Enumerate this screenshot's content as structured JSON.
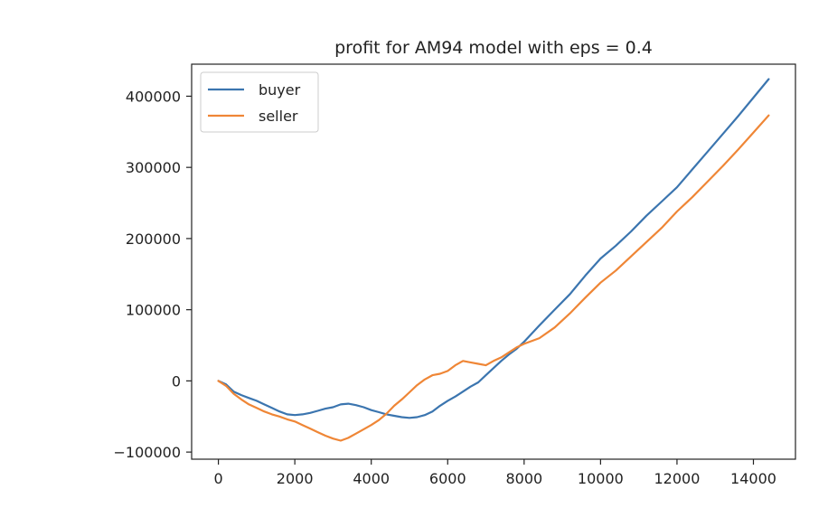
{
  "chart_data": {
    "type": "line",
    "title": "profit for AM94 model with eps = 0.4",
    "xlabel": "",
    "ylabel": "",
    "xlim": [
      -700,
      15100
    ],
    "ylim": [
      -110000,
      445000
    ],
    "xticks": [
      0,
      2000,
      4000,
      6000,
      8000,
      10000,
      12000,
      14000
    ],
    "yticks": [
      -100000,
      0,
      100000,
      200000,
      300000,
      400000
    ],
    "xtick_labels": [
      "0",
      "2000",
      "4000",
      "6000",
      "8000",
      "10000",
      "12000",
      "14000"
    ],
    "ytick_labels": [
      "−100000",
      "0",
      "100000",
      "200000",
      "300000",
      "400000"
    ],
    "grid": false,
    "legend": "top-left",
    "series": [
      {
        "name": "buyer",
        "color": "#3b75af",
        "x": [
          0,
          200,
          400,
          600,
          800,
          1000,
          1200,
          1400,
          1600,
          1800,
          2000,
          2200,
          2400,
          2600,
          2800,
          3000,
          3200,
          3400,
          3600,
          3800,
          4000,
          4200,
          4400,
          4600,
          4800,
          5000,
          5200,
          5400,
          5600,
          5800,
          6000,
          6200,
          6400,
          6600,
          6800,
          7000,
          7200,
          7400,
          7600,
          7800,
          8000,
          8400,
          8800,
          9200,
          9600,
          10000,
          10400,
          10800,
          11200,
          11600,
          12000,
          12400,
          12800,
          13200,
          13600,
          14000,
          14400
        ],
        "y": [
          0,
          -5000,
          -15000,
          -20000,
          -24000,
          -28000,
          -33000,
          -38000,
          -43000,
          -47000,
          -48000,
          -47000,
          -45000,
          -42000,
          -39000,
          -37000,
          -33000,
          -32000,
          -34000,
          -37000,
          -41000,
          -44000,
          -47000,
          -49000,
          -51000,
          -52000,
          -51000,
          -48000,
          -43000,
          -35000,
          -28000,
          -22000,
          -15000,
          -8000,
          -2000,
          8000,
          18000,
          28000,
          37000,
          45000,
          55000,
          78000,
          100000,
          122000,
          148000,
          172000,
          190000,
          210000,
          232000,
          252000,
          272000,
          297000,
          322000,
          347000,
          372000,
          398000,
          424000
        ]
      },
      {
        "name": "seller",
        "color": "#ef8636",
        "x": [
          0,
          200,
          400,
          600,
          800,
          1000,
          1200,
          1400,
          1600,
          1800,
          2000,
          2200,
          2400,
          2600,
          2800,
          3000,
          3200,
          3400,
          3600,
          3800,
          4000,
          4200,
          4400,
          4600,
          4800,
          5000,
          5200,
          5400,
          5600,
          5800,
          6000,
          6200,
          6400,
          6600,
          6800,
          7000,
          7200,
          7400,
          7600,
          7800,
          8000,
          8400,
          8800,
          9200,
          9600,
          10000,
          10400,
          10800,
          11200,
          11600,
          12000,
          12400,
          12800,
          13200,
          13600,
          14000,
          14400
        ],
        "y": [
          0,
          -7000,
          -18000,
          -26000,
          -33000,
          -38000,
          -43000,
          -47000,
          -50000,
          -54000,
          -57000,
          -62000,
          -67000,
          -72000,
          -77000,
          -81000,
          -84000,
          -80000,
          -74000,
          -68000,
          -62000,
          -55000,
          -46000,
          -35000,
          -26000,
          -16000,
          -6000,
          2000,
          8000,
          10000,
          14000,
          22000,
          28000,
          26000,
          24000,
          22000,
          28000,
          33000,
          40000,
          47000,
          52000,
          60000,
          75000,
          95000,
          117000,
          138000,
          155000,
          175000,
          195000,
          215000,
          238000,
          258000,
          280000,
          302000,
          325000,
          349000,
          373000
        ]
      }
    ]
  }
}
